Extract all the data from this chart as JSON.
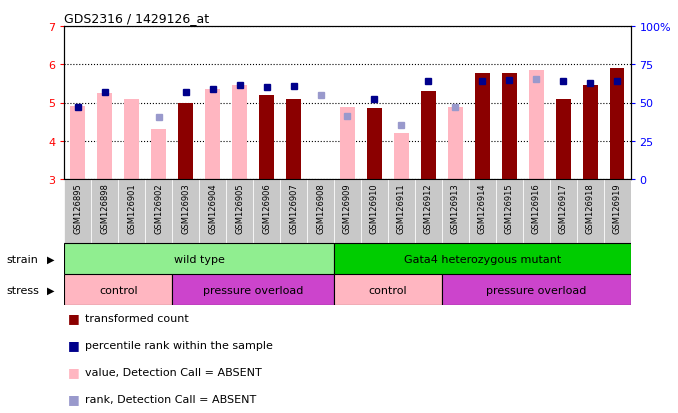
{
  "title": "GDS2316 / 1429126_at",
  "samples": [
    "GSM126895",
    "GSM126898",
    "GSM126901",
    "GSM126902",
    "GSM126903",
    "GSM126904",
    "GSM126905",
    "GSM126906",
    "GSM126907",
    "GSM126908",
    "GSM126909",
    "GSM126910",
    "GSM126911",
    "GSM126912",
    "GSM126913",
    "GSM126914",
    "GSM126915",
    "GSM126916",
    "GSM126917",
    "GSM126918",
    "GSM126919"
  ],
  "transformed_count": [
    null,
    null,
    null,
    null,
    5.0,
    null,
    null,
    5.2,
    5.1,
    null,
    null,
    4.85,
    null,
    5.3,
    null,
    5.78,
    5.78,
    null,
    5.1,
    5.45,
    5.9
  ],
  "percentile_rank": [
    4.88,
    5.28,
    null,
    null,
    5.28,
    5.35,
    5.45,
    5.4,
    5.42,
    null,
    null,
    5.1,
    null,
    5.55,
    null,
    5.55,
    5.6,
    null,
    5.55,
    5.5,
    5.55
  ],
  "value_absent": [
    4.9,
    5.25,
    5.08,
    4.3,
    null,
    5.35,
    5.45,
    null,
    null,
    null,
    4.88,
    null,
    4.2,
    null,
    4.88,
    null,
    null,
    5.85,
    null,
    null,
    null
  ],
  "rank_absent": [
    null,
    null,
    null,
    4.62,
    null,
    null,
    null,
    null,
    null,
    5.2,
    4.65,
    null,
    4.42,
    null,
    4.88,
    null,
    null,
    5.62,
    null,
    null,
    null
  ],
  "ylim_left": [
    3,
    7
  ],
  "ylim_right": [
    0,
    100
  ],
  "yticks_left": [
    3,
    4,
    5,
    6,
    7
  ],
  "yticks_right": [
    0,
    25,
    50,
    75,
    100
  ],
  "bar_color_red": "#8B0000",
  "bar_color_pink": "#FFB6C1",
  "dot_color_blue": "#00008B",
  "dot_color_lightblue": "#9999CC",
  "strain_wild_color": "#90EE90",
  "strain_mutant_color": "#00CC00",
  "stress_control_color": "#FFB6C1",
  "stress_pressure_color": "#CC44CC",
  "gray_bg": "#C8C8C8",
  "legend": [
    {
      "label": "transformed count",
      "color": "#8B0000"
    },
    {
      "label": "percentile rank within the sample",
      "color": "#00008B"
    },
    {
      "label": "value, Detection Call = ABSENT",
      "color": "#FFB6C1"
    },
    {
      "label": "rank, Detection Call = ABSENT",
      "color": "#9999CC"
    }
  ],
  "n_wild_type": 10,
  "n_control_1": 4,
  "n_pressure_1": 6,
  "n_control_2": 4,
  "n_pressure_2": 7
}
